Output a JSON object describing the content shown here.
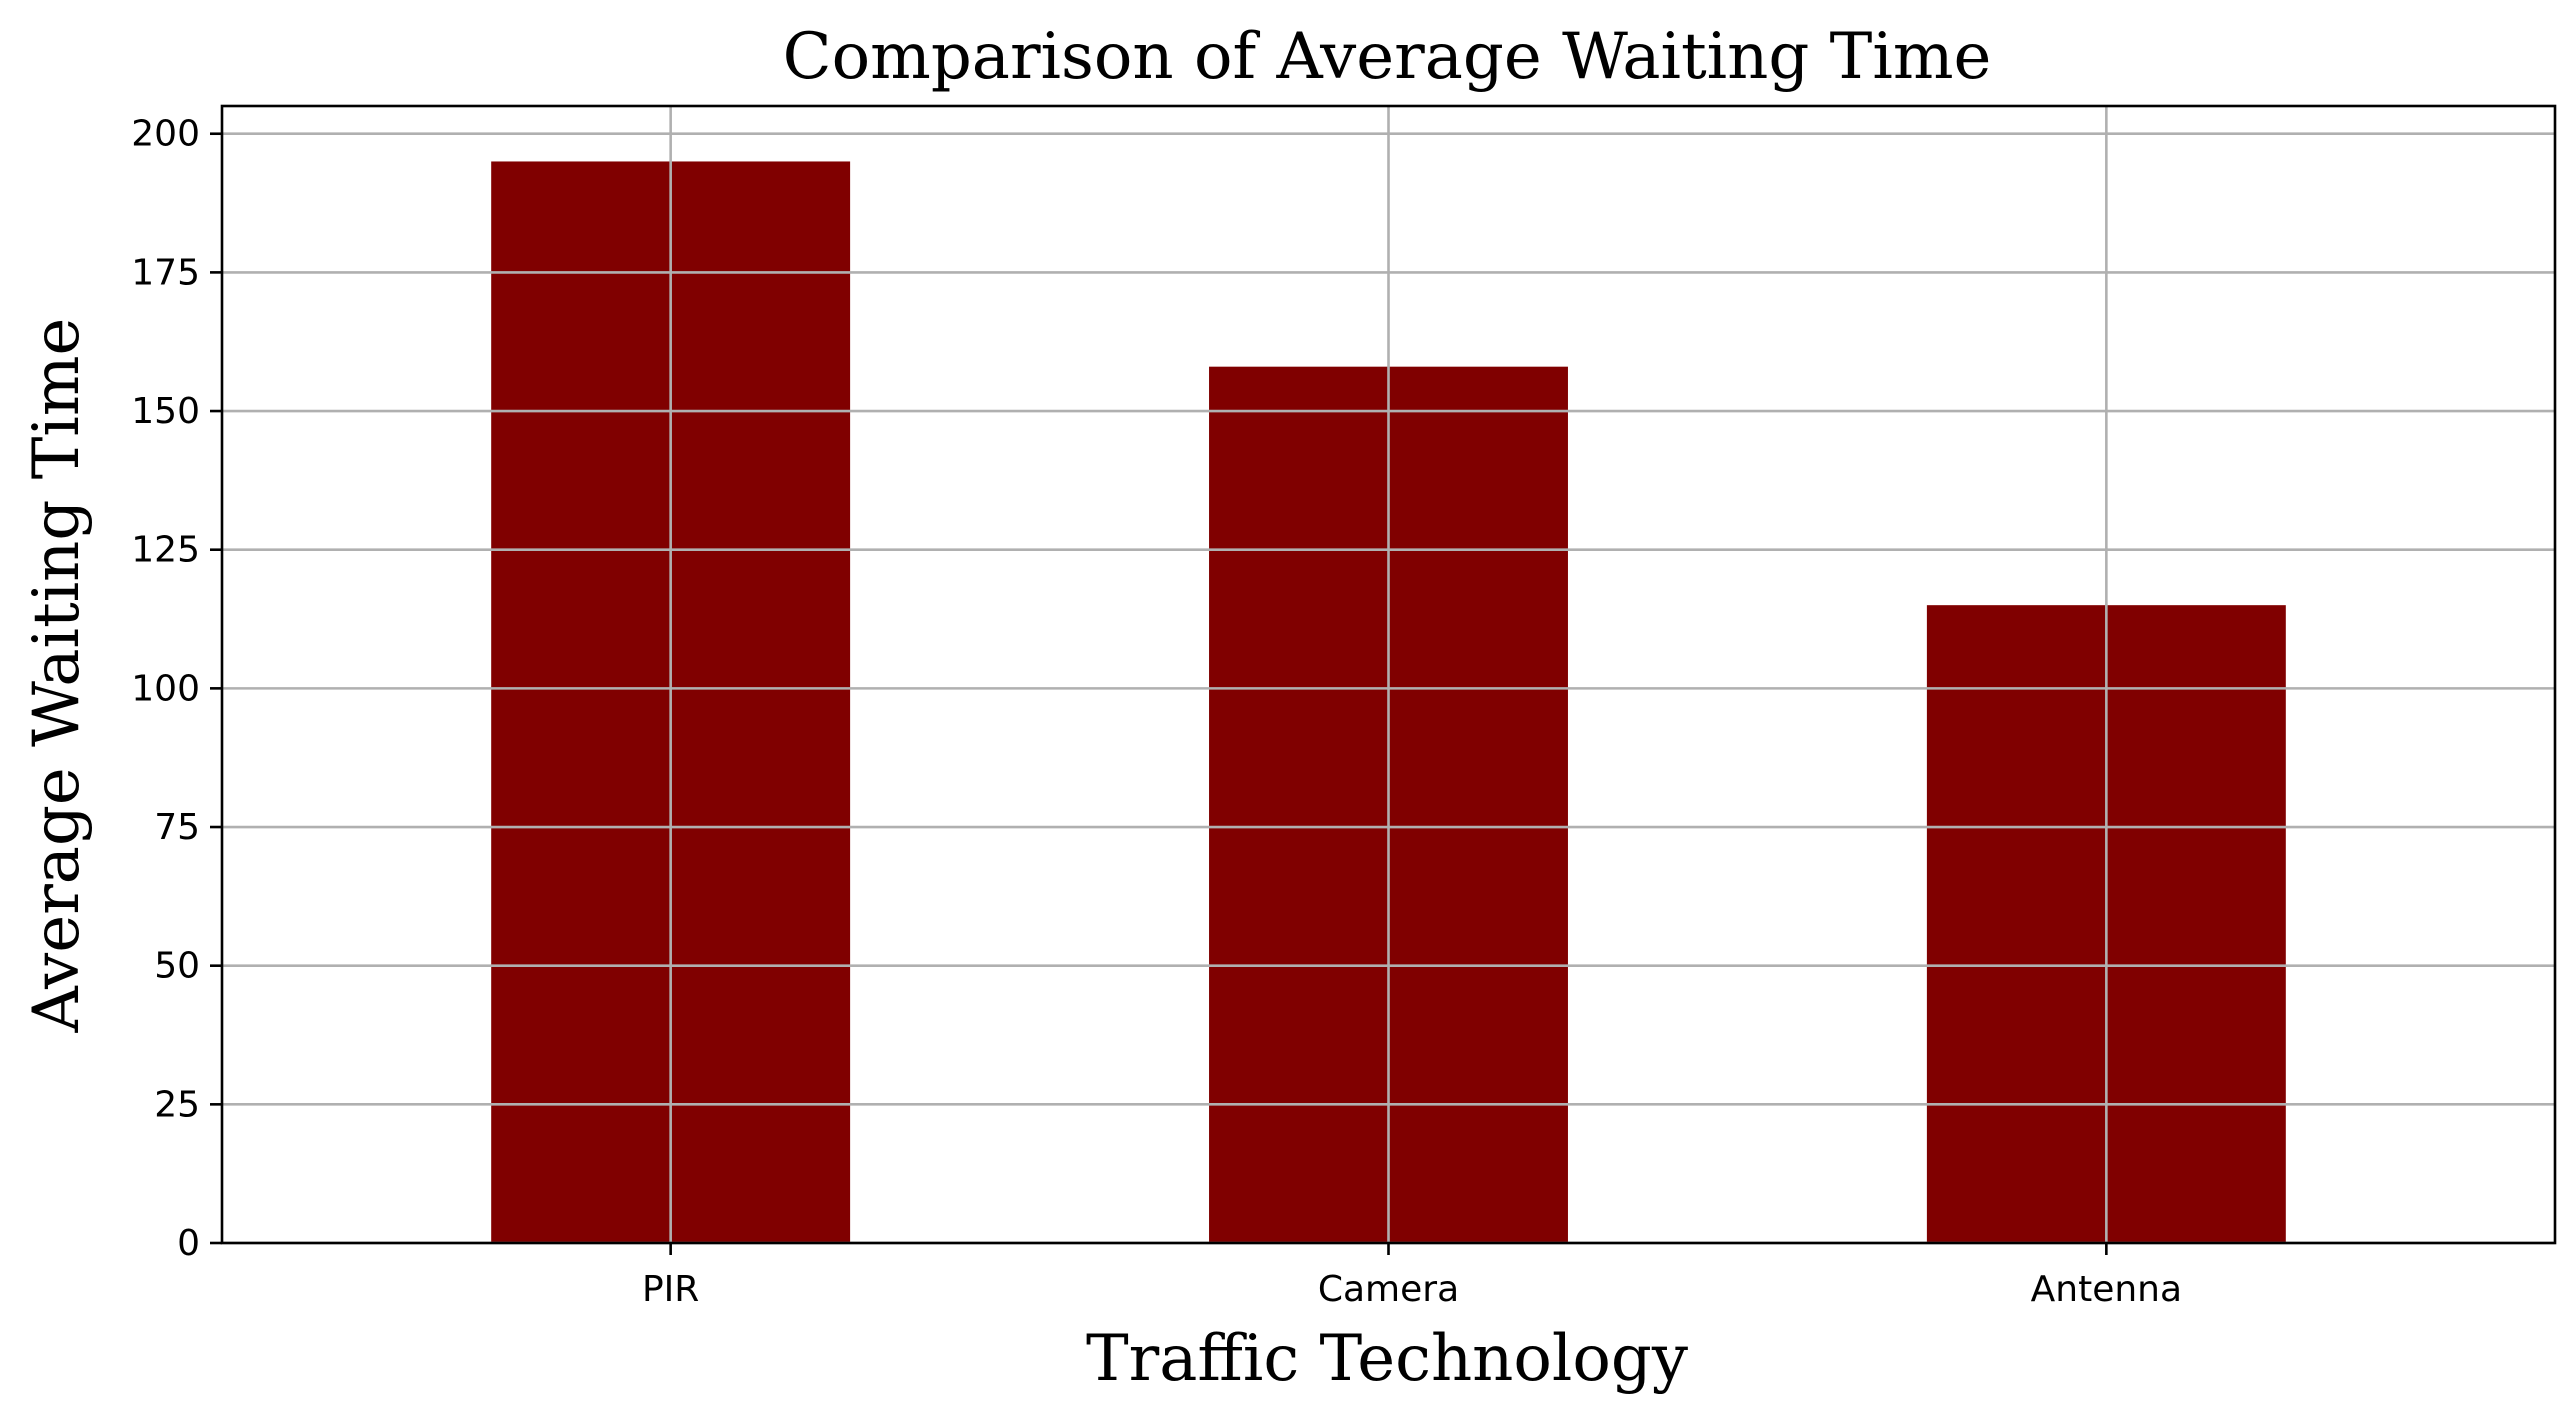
{
  "chart_data": {
    "type": "bar",
    "title": "Comparison of Average Waiting Time",
    "xlabel": "Traffic Technology",
    "ylabel": "Average Waiting Time",
    "categories": [
      "PIR",
      "Camera",
      "Antenna"
    ],
    "values": [
      195,
      158,
      115
    ],
    "ylim": [
      0,
      205
    ],
    "yticks": [
      0,
      25,
      50,
      75,
      100,
      125,
      150,
      175,
      200
    ],
    "grid": true,
    "bar_color": "#800000"
  }
}
